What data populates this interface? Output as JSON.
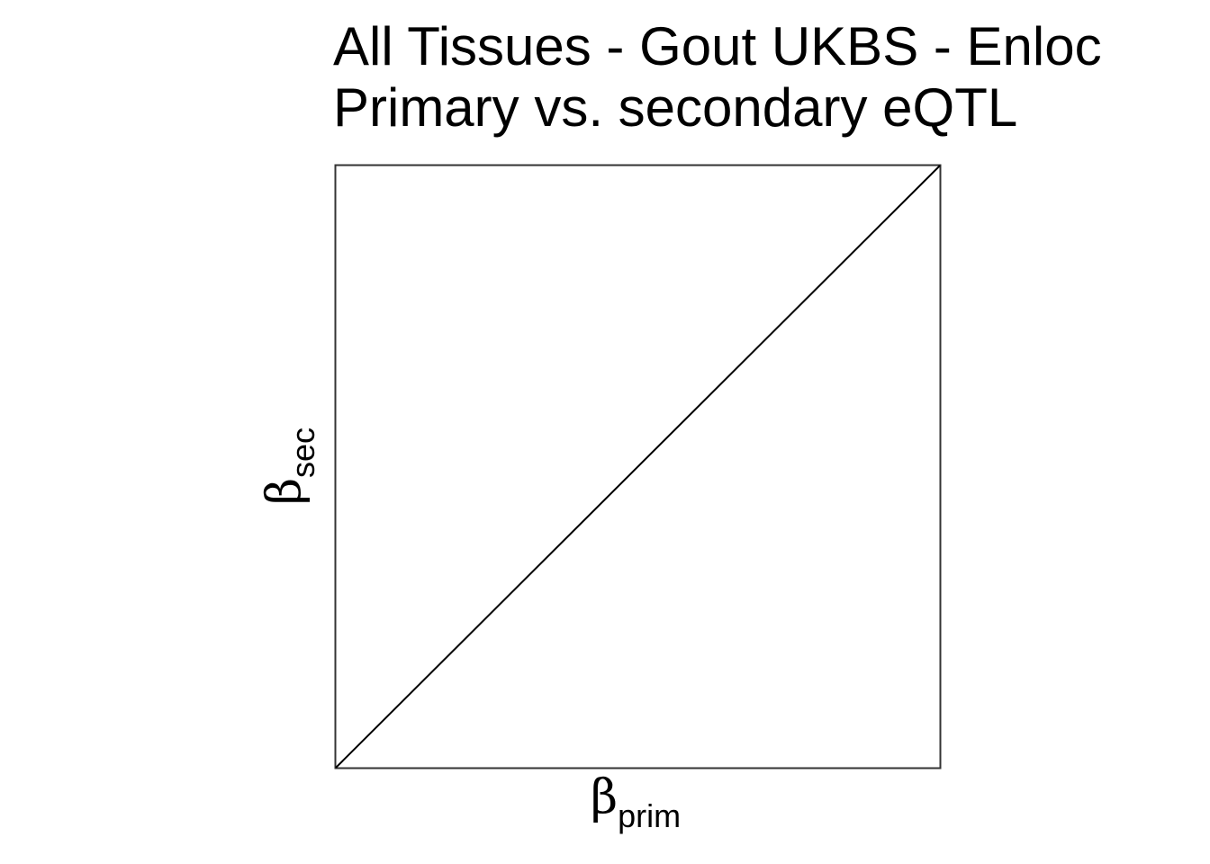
{
  "chart_data": {
    "type": "scatter",
    "title": "All Tissues - Gout UKBS - Enloc",
    "subtitle": "Primary vs. secondary eQTL",
    "xlabel": {
      "symbol": "β",
      "subscript": "prim"
    },
    "ylabel": {
      "symbol": "β",
      "subscript": "sec"
    },
    "series": [],
    "xlim": [
      0,
      1
    ],
    "ylim": [
      0,
      1
    ],
    "reference_line": {
      "type": "identity",
      "x": [
        0,
        1
      ],
      "y": [
        0,
        1
      ]
    },
    "grid": false,
    "legend": "none"
  }
}
